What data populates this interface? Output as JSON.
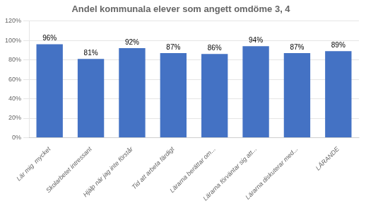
{
  "chart_data": {
    "type": "bar",
    "title": "Andel kommunala elever som angett omdöme 3, 4",
    "categories": [
      "Lär mig  mycket",
      "Skolarbetet intressant",
      "Hjälp när jag inte förstår",
      "Tid att arbeta färdigt",
      "Lärarna berättar om...",
      "Lärarna förväntar sig att...",
      "Lärarna diskuterar med...",
      "LÄRANDE"
    ],
    "values": [
      0.96,
      0.81,
      0.92,
      0.87,
      0.86,
      0.94,
      0.87,
      0.89
    ],
    "value_labels": [
      "96%",
      "81%",
      "92%",
      "87%",
      "86%",
      "94%",
      "87%",
      "89%"
    ],
    "color": "#4472C4",
    "ylim": [
      0,
      1.2
    ],
    "yticks": [
      {
        "value": 0,
        "label": "0%"
      },
      {
        "value": 0.2,
        "label": "20%"
      },
      {
        "value": 0.4,
        "label": "40%"
      },
      {
        "value": 0.6,
        "label": "60%"
      },
      {
        "value": 0.8,
        "label": "80%"
      },
      {
        "value": 1.0,
        "label": "100%"
      },
      {
        "value": 1.2,
        "label": "120%"
      }
    ],
    "grid": true,
    "data_labels": true
  }
}
